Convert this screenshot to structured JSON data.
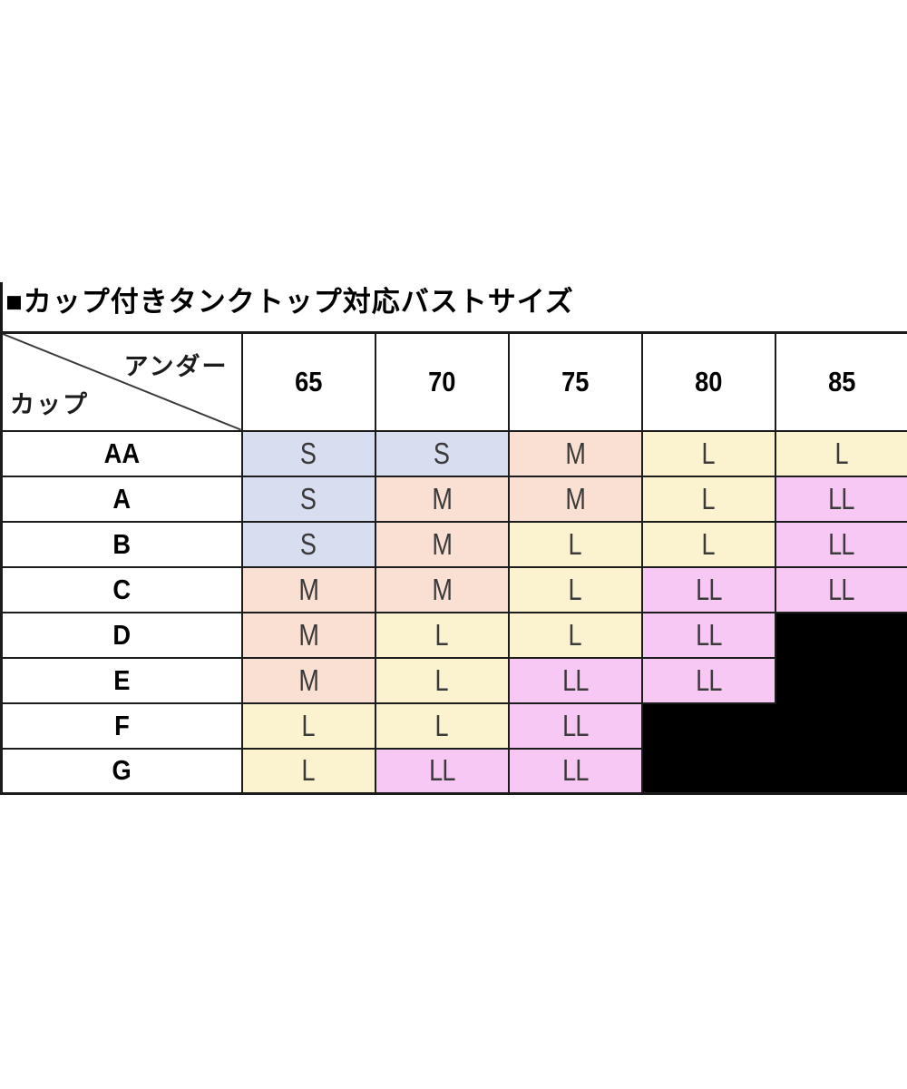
{
  "title": "■カップ付きタンクトップ対応バストサイズ",
  "chart_data": {
    "type": "table",
    "title": "カップ付きタンクトップ対応バストサイズ",
    "corner": {
      "top_right": "アンダー",
      "bottom_left": "カップ"
    },
    "columns": [
      "65",
      "70",
      "75",
      "80",
      "85"
    ],
    "rows": [
      {
        "cup": "AA",
        "cells": [
          {
            "v": "S",
            "c": "blue"
          },
          {
            "v": "S",
            "c": "blue"
          },
          {
            "v": "M",
            "c": "salmon"
          },
          {
            "v": "L",
            "c": "yellow"
          },
          {
            "v": "L",
            "c": "yellow"
          }
        ]
      },
      {
        "cup": "A",
        "cells": [
          {
            "v": "S",
            "c": "blue"
          },
          {
            "v": "M",
            "c": "salmon"
          },
          {
            "v": "M",
            "c": "salmon"
          },
          {
            "v": "L",
            "c": "yellow"
          },
          {
            "v": "LL",
            "c": "pink"
          }
        ]
      },
      {
        "cup": "B",
        "cells": [
          {
            "v": "S",
            "c": "blue"
          },
          {
            "v": "M",
            "c": "salmon"
          },
          {
            "v": "L",
            "c": "yellow"
          },
          {
            "v": "L",
            "c": "yellow"
          },
          {
            "v": "LL",
            "c": "pink"
          }
        ]
      },
      {
        "cup": "C",
        "cells": [
          {
            "v": "M",
            "c": "salmon"
          },
          {
            "v": "M",
            "c": "salmon"
          },
          {
            "v": "L",
            "c": "yellow"
          },
          {
            "v": "LL",
            "c": "pink"
          },
          {
            "v": "LL",
            "c": "pink"
          }
        ]
      },
      {
        "cup": "D",
        "cells": [
          {
            "v": "M",
            "c": "salmon"
          },
          {
            "v": "L",
            "c": "yellow"
          },
          {
            "v": "L",
            "c": "yellow"
          },
          {
            "v": "LL",
            "c": "pink"
          },
          {
            "v": "",
            "c": "black"
          }
        ]
      },
      {
        "cup": "E",
        "cells": [
          {
            "v": "M",
            "c": "salmon"
          },
          {
            "v": "L",
            "c": "yellow"
          },
          {
            "v": "LL",
            "c": "pink"
          },
          {
            "v": "LL",
            "c": "pink"
          },
          {
            "v": "",
            "c": "black"
          }
        ]
      },
      {
        "cup": "F",
        "cells": [
          {
            "v": "L",
            "c": "yellow"
          },
          {
            "v": "L",
            "c": "yellow"
          },
          {
            "v": "LL",
            "c": "pink"
          },
          {
            "v": "",
            "c": "black"
          },
          {
            "v": "",
            "c": "black"
          }
        ]
      },
      {
        "cup": "G",
        "cells": [
          {
            "v": "L",
            "c": "yellow"
          },
          {
            "v": "LL",
            "c": "pink"
          },
          {
            "v": "LL",
            "c": "pink"
          },
          {
            "v": "",
            "c": "black"
          },
          {
            "v": "",
            "c": "black"
          }
        ]
      }
    ],
    "colors": {
      "blue": "#d7deef",
      "salmon": "#fae0d3",
      "yellow": "#fbf2d0",
      "pink": "#f8c8f4",
      "black": "#000000",
      "border": "#1c1c1c",
      "value_text": "#3a3a3a"
    }
  }
}
